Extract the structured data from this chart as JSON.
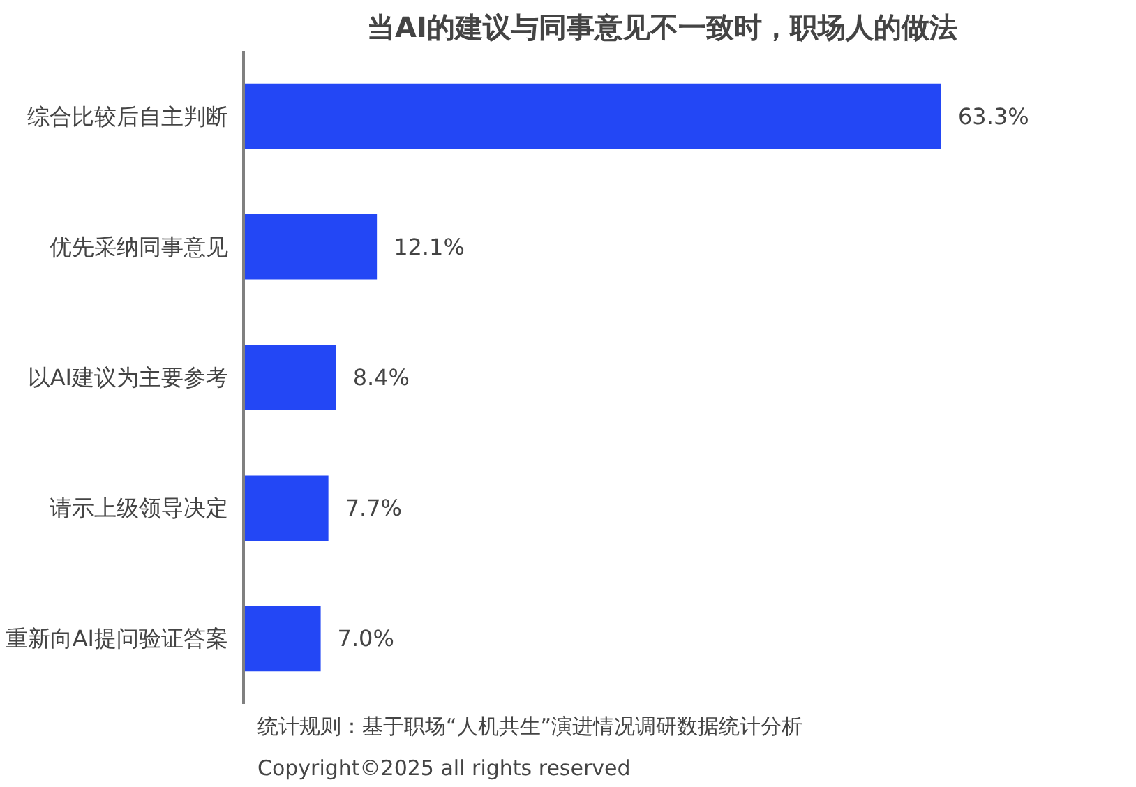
{
  "chart_data": {
    "type": "bar",
    "orientation": "horizontal",
    "title": "当AI的建议与同事意见不一致时，职场人的做法",
    "categories": [
      "综合比较后自主判断",
      "优先采纳同事意见",
      "以AI建议为主要参考",
      "请示上级领导决定",
      "重新向AI提问验证答案"
    ],
    "values": [
      63.3,
      12.1,
      8.4,
      7.7,
      7.0
    ],
    "value_labels": [
      "63.3%",
      "12.1%",
      "8.4%",
      "7.7%",
      "7.0%"
    ],
    "color": "#2347f5",
    "annotations": [
      "统计规则：基于职场“人机共生”演进情况调研数据统计分析",
      "Copyright©2025 all rights reserved"
    ]
  }
}
